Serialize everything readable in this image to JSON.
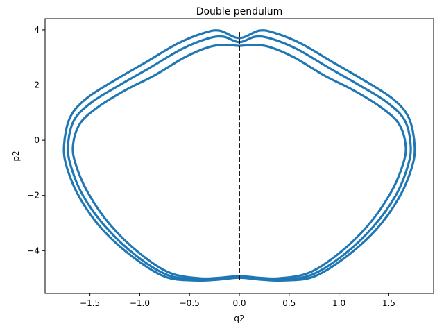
{
  "chart_data": {
    "type": "line",
    "title": "Double pendulum",
    "xlabel": "q2",
    "ylabel": "p2",
    "xlim": [
      -1.95,
      1.95
    ],
    "ylim": [
      -5.55,
      4.4
    ],
    "x_ticks": [
      -1.5,
      -1.0,
      -0.5,
      0.0,
      0.5,
      1.0,
      1.5
    ],
    "x_tick_labels": [
      "−1.5",
      "−1.0",
      "−0.5",
      "0.0",
      "0.5",
      "1.0",
      "1.5"
    ],
    "y_ticks": [
      -4,
      -2,
      0,
      2,
      4
    ],
    "y_tick_labels": [
      "−4",
      "−2",
      "0",
      "2",
      "4"
    ],
    "grid": false,
    "series": [
      {
        "color": "#1f77b4",
        "style": "solid",
        "loops": [
          {
            "x": [
              0.0,
              0.14,
              0.3,
              0.55,
              0.85,
              1.15,
              1.42,
              1.6,
              1.67,
              1.64,
              1.52,
              1.3,
              1.0,
              0.7,
              0.4,
              0.2,
              0.0,
              -0.2,
              -0.4,
              -0.7,
              -1.0,
              -1.3,
              -1.52,
              -1.64,
              -1.67,
              -1.6,
              -1.42,
              -1.15,
              -0.85,
              -0.55,
              -0.3,
              -0.14,
              0.0
            ],
            "y": [
              3.42,
              3.45,
              3.38,
              3.0,
              2.35,
              1.8,
              1.2,
              0.6,
              -0.2,
              -0.9,
              -1.9,
              -3.05,
              -4.1,
              -4.8,
              -5.0,
              -4.98,
              -4.92,
              -4.98,
              -5.0,
              -4.8,
              -4.1,
              -3.05,
              -1.9,
              -0.9,
              -0.2,
              0.6,
              1.2,
              1.8,
              2.35,
              3.0,
              3.38,
              3.45,
              3.42
            ]
          },
          {
            "x": [
              0.0,
              0.16,
              0.32,
              0.58,
              0.9,
              1.2,
              1.48,
              1.66,
              1.72,
              1.69,
              1.57,
              1.34,
              1.03,
              0.72,
              0.42,
              0.21,
              0.0,
              -0.21,
              -0.42,
              -0.72,
              -1.03,
              -1.34,
              -1.57,
              -1.69,
              -1.72,
              -1.66,
              -1.48,
              -1.2,
              -0.9,
              -0.58,
              -0.32,
              -0.16,
              0.0
            ],
            "y": [
              3.55,
              3.75,
              3.68,
              3.3,
              2.62,
              2.0,
              1.38,
              0.72,
              -0.2,
              -0.95,
              -2.0,
              -3.15,
              -4.2,
              -4.88,
              -5.05,
              -5.02,
              -4.95,
              -5.02,
              -5.05,
              -4.88,
              -4.2,
              -3.15,
              -2.0,
              -0.95,
              -0.2,
              0.72,
              1.38,
              2.0,
              2.62,
              3.3,
              3.68,
              3.75,
              3.55
            ]
          },
          {
            "x": [
              0.0,
              0.2,
              0.36,
              0.62,
              0.95,
              1.26,
              1.54,
              1.7,
              1.76,
              1.73,
              1.6,
              1.37,
              1.05,
              0.74,
              0.44,
              0.22,
              0.0,
              -0.22,
              -0.44,
              -0.74,
              -1.05,
              -1.37,
              -1.6,
              -1.73,
              -1.76,
              -1.7,
              -1.54,
              -1.26,
              -0.95,
              -0.62,
              -0.36,
              -0.2,
              0.0
            ],
            "y": [
              3.7,
              3.97,
              3.88,
              3.5,
              2.8,
              2.15,
              1.5,
              0.82,
              -0.2,
              -1.0,
              -2.1,
              -3.25,
              -4.28,
              -4.95,
              -5.08,
              -5.05,
              -4.98,
              -5.05,
              -5.08,
              -4.95,
              -4.28,
              -3.25,
              -2.1,
              -1.0,
              -0.2,
              0.82,
              1.5,
              2.15,
              2.8,
              3.5,
              3.88,
              3.97,
              3.7
            ]
          }
        ]
      },
      {
        "color": "#000000",
        "style": "dashed",
        "x": [
          0.0,
          0.0
        ],
        "y": [
          -5.05,
          3.95
        ]
      }
    ]
  }
}
